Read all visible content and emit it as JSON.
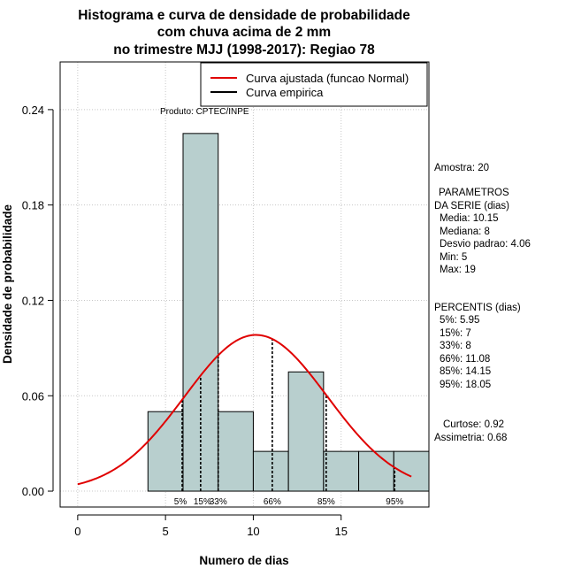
{
  "colors": {
    "bar_fill": "#b8cfce",
    "bar_stroke": "#000000",
    "grid": "#c8c8c8",
    "normal_curve": "#e00000",
    "empirical_curve": "#000000"
  },
  "chart_data": {
    "type": "bar",
    "title_lines": [
      "Histograma e curva de densidade de probabilidade",
      "com chuva acima de 2 mm",
      "no trimestre MJJ (1998-2017): Regiao 78"
    ],
    "xlabel": "Numero de dias",
    "ylabel": "Densidade de probabilidade",
    "xlim": [
      -1,
      20
    ],
    "ylim": [
      -0.01,
      0.27
    ],
    "x_ticks": [
      0,
      5,
      10,
      15
    ],
    "x_tick_labels": [
      "0",
      "5",
      "10",
      "15"
    ],
    "y_ticks": [
      0.0,
      0.06,
      0.12,
      0.18,
      0.24
    ],
    "y_tick_labels": [
      "0.00",
      "0.06",
      "0.12",
      "0.18",
      "0.24"
    ],
    "grid": true,
    "bins": [
      {
        "start": 4,
        "end": 6,
        "density": 0.05
      },
      {
        "start": 6,
        "end": 8,
        "density": 0.225
      },
      {
        "start": 8,
        "end": 10,
        "density": 0.05
      },
      {
        "start": 10,
        "end": 12,
        "density": 0.025
      },
      {
        "start": 12,
        "end": 14,
        "density": 0.075
      },
      {
        "start": 14,
        "end": 16,
        "density": 0.025
      },
      {
        "start": 16,
        "end": 18,
        "density": 0.025
      },
      {
        "start": 18,
        "end": 20,
        "density": 0.025
      }
    ],
    "normal_fit": {
      "mean": 10.15,
      "sd": 4.06,
      "x_from": 0,
      "x_to": 19
    },
    "percentile_lines": [
      {
        "x": 5.95,
        "label": "5%"
      },
      {
        "x": 7,
        "label": "15%"
      },
      {
        "x": 8,
        "label": "33%"
      },
      {
        "x": 11.08,
        "label": "66%"
      },
      {
        "x": 14.15,
        "label": "85%"
      },
      {
        "x": 18.05,
        "label": "95%"
      }
    ],
    "legend": {
      "position": "top-right",
      "entries": [
        {
          "label": "Curva ajustada (funcao Normal)",
          "color": "#e00000"
        },
        {
          "label": "Curva empirica",
          "color": "#000000"
        }
      ]
    },
    "annotation": "Produto: CPTEC/INPE"
  },
  "side_panel": {
    "sample": "Amostra: 20",
    "params_title_1": "PARAMETROS",
    "params_title_2": "DA SERIE (dias)",
    "params": [
      "Media: 10.15",
      "Mediana: 8",
      "Desvio padrao: 4.06",
      "Min: 5",
      "Max: 19"
    ],
    "percentis_title": "PERCENTIS (dias)",
    "percentis": [
      "5%: 5.95",
      "15%: 7",
      "33%: 8",
      "66%: 11.08",
      "85%: 14.15",
      "95%: 18.05"
    ],
    "kurtosis": "Curtose: 0.92",
    "skewness": "Assimetria: 0.68"
  }
}
